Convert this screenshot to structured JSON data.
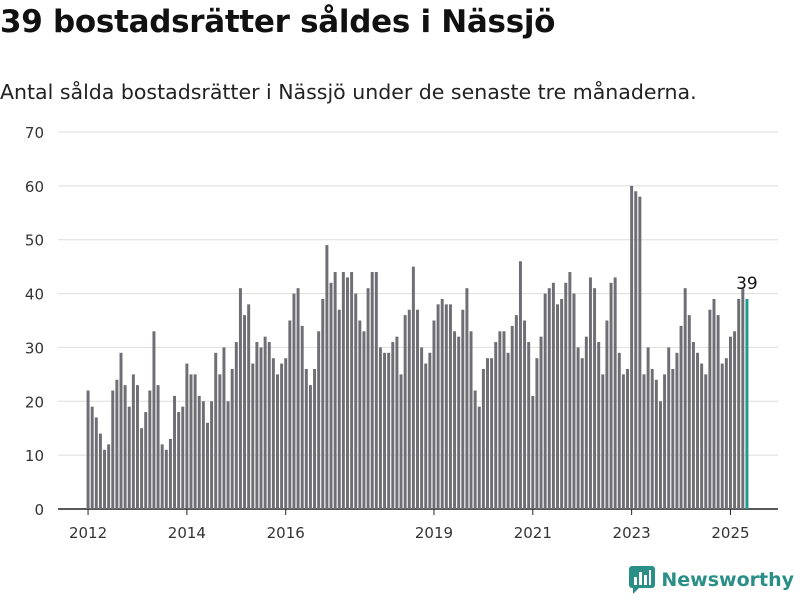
{
  "title": "39 bostadsrätter såldes i Nässjö",
  "subtitle": "Antal sålda bostadsrätter i Nässjö under de senaste tre månaderna.",
  "brand": {
    "name": "Newsworthy",
    "logo_icon": "bar-chart-icon",
    "color": "#2a8f86"
  },
  "chart_data": {
    "type": "bar",
    "ylim": [
      0,
      70
    ],
    "yticks": [
      0,
      10,
      20,
      30,
      40,
      50,
      60,
      70
    ],
    "x_start": "2012-01",
    "xticks": [
      {
        "label": "2012",
        "month": "2012-01"
      },
      {
        "label": "2014",
        "month": "2014-01"
      },
      {
        "label": "2016",
        "month": "2016-01"
      },
      {
        "label": "2019",
        "month": "2019-01"
      },
      {
        "label": "2021",
        "month": "2021-01"
      },
      {
        "label": "2023",
        "month": "2023-01"
      },
      {
        "label": "2025",
        "month": "2025-01"
      }
    ],
    "values": [
      22,
      19,
      17,
      14,
      11,
      12,
      22,
      24,
      29,
      23,
      19,
      25,
      23,
      15,
      18,
      22,
      33,
      23,
      12,
      11,
      13,
      21,
      18,
      19,
      27,
      25,
      25,
      21,
      20,
      16,
      20,
      29,
      25,
      30,
      20,
      26,
      31,
      41,
      36,
      38,
      27,
      31,
      30,
      32,
      31,
      28,
      25,
      27,
      28,
      35,
      40,
      41,
      34,
      26,
      23,
      26,
      33,
      39,
      49,
      42,
      44,
      37,
      44,
      43,
      44,
      40,
      35,
      33,
      41,
      44,
      44,
      30,
      29,
      29,
      31,
      32,
      25,
      36,
      37,
      45,
      37,
      30,
      27,
      29,
      35,
      38,
      39,
      38,
      38,
      33,
      32,
      37,
      41,
      33,
      22,
      19,
      26,
      28,
      28,
      31,
      33,
      33,
      29,
      34,
      36,
      46,
      35,
      31,
      21,
      28,
      32,
      40,
      41,
      42,
      38,
      39,
      42,
      44,
      40,
      30,
      28,
      32,
      43,
      41,
      31,
      25,
      35,
      42,
      43,
      29,
      25,
      26,
      60,
      59,
      58,
      25,
      30,
      26,
      24,
      20,
      25,
      30,
      26,
      29,
      34,
      41,
      36,
      31,
      29,
      27,
      25,
      37,
      39,
      36,
      27,
      28,
      32,
      33,
      39,
      41,
      39
    ],
    "bar_color": "#6f6e75",
    "highlight_color": "#1f9a90",
    "highlight_label": "39",
    "grid": true,
    "legend": "none"
  }
}
